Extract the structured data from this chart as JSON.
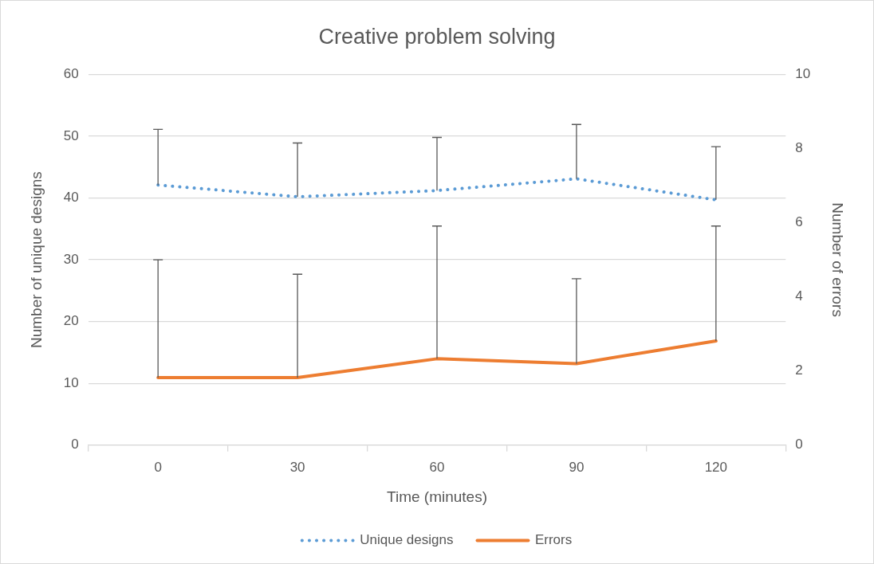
{
  "chart_data": {
    "type": "line",
    "title": "Creative problem solving",
    "xlabel": "Time (minutes)",
    "ylabel": "Number of unique designs",
    "y2label": "Number of errors",
    "categories": [
      "0",
      "30",
      "60",
      "90",
      "120"
    ],
    "series": [
      {
        "name": "Unique designs",
        "color": "#5b9bd5",
        "line_style": "dotted",
        "values": [
          42.1,
          40.2,
          41.2,
          43.1,
          39.7
        ],
        "errors": [
          [
            42.1,
            51.1
          ],
          [
            40.2,
            48.9
          ],
          [
            41.2,
            49.8
          ],
          [
            43.1,
            51.9
          ],
          [
            39.7,
            48.3
          ]
        ]
      },
      {
        "name": "Errors",
        "color": "#ed7d31",
        "line_style": "solid",
        "axis": "y2",
        "values": [
          1.82,
          1.82,
          2.33,
          2.2,
          2.81
        ],
        "errors": [
          [
            1.82,
            5.0
          ],
          [
            1.82,
            4.61
          ],
          [
            2.33,
            5.91
          ],
          [
            2.2,
            4.49
          ],
          [
            2.81,
            5.91
          ]
        ]
      }
    ],
    "ylim": [
      0,
      60
    ],
    "yticks": [
      0,
      10,
      20,
      30,
      40,
      50,
      60
    ],
    "y2lim": [
      0,
      10
    ],
    "y2ticks": [
      0,
      2,
      4,
      6,
      8,
      10
    ],
    "grid": "y",
    "legend": "bottom",
    "marker": "none"
  }
}
